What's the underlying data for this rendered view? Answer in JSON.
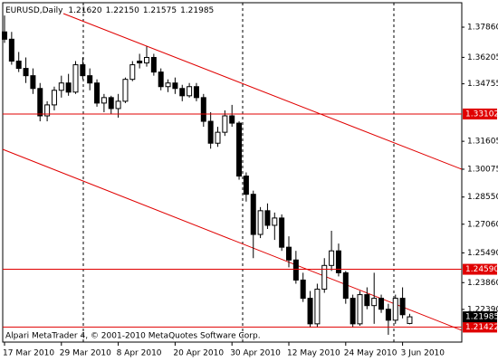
{
  "chart_data": {
    "type": "candlestick",
    "title": "EURUSD,Daily",
    "header_ohlc": [
      {
        "value": 1.2162,
        "label": "1.21620"
      },
      {
        "value": 1.2215,
        "label": "1.22150"
      },
      {
        "value": 1.21575,
        "label": "1.21575"
      },
      {
        "value": 1.21985,
        "label": "1.21985"
      }
    ],
    "watermark": "Alpari MetaTrader 4, © 2001-2010 MetaQuotes Software Corp.",
    "categories": [
      "17 Mar 2010",
      null,
      null,
      null,
      null,
      null,
      null,
      null,
      "29 Mar 2010",
      null,
      null,
      null,
      null,
      null,
      null,
      null,
      "8 Apr 2010",
      null,
      null,
      null,
      null,
      null,
      null,
      null,
      "20 Apr 2010",
      null,
      null,
      null,
      null,
      null,
      null,
      null,
      "30 Apr 2010",
      null,
      null,
      null,
      null,
      null,
      null,
      null,
      "12 May 2010",
      null,
      null,
      null,
      null,
      null,
      null,
      null,
      "24 May 2010",
      null,
      null,
      null,
      null,
      null,
      null,
      null,
      "3 Jun 2010",
      null
    ],
    "open": [
      1.376,
      1.372,
      1.36,
      1.356,
      1.352,
      1.345,
      1.33,
      1.336,
      1.344,
      1.348,
      1.343,
      1.358,
      1.352,
      1.348,
      1.337,
      1.34,
      1.334,
      1.338,
      1.35,
      1.36,
      1.359,
      1.362,
      1.354,
      1.346,
      1.348,
      1.345,
      1.341,
      1.346,
      1.34,
      1.327,
      1.315,
      1.321,
      1.33,
      1.326,
      1.297,
      1.287,
      1.265,
      1.278,
      1.27,
      1.274,
      1.258,
      1.251,
      1.24,
      1.23,
      1.216,
      1.235,
      1.248,
      1.256,
      1.244,
      1.23,
      1.216,
      1.232,
      1.226,
      1.23,
      1.224,
      1.218,
      1.23,
      1.2162
    ],
    "high": [
      1.385,
      1.376,
      1.365,
      1.362,
      1.356,
      1.348,
      1.338,
      1.346,
      1.352,
      1.353,
      1.36,
      1.362,
      1.356,
      1.35,
      1.342,
      1.341,
      1.342,
      1.351,
      1.36,
      1.364,
      1.368,
      1.364,
      1.356,
      1.35,
      1.351,
      1.347,
      1.348,
      1.348,
      1.342,
      1.332,
      1.324,
      1.333,
      1.336,
      1.327,
      1.299,
      1.289,
      1.28,
      1.282,
      1.277,
      1.276,
      1.264,
      1.256,
      1.244,
      1.234,
      1.238,
      1.252,
      1.267,
      1.26,
      1.245,
      1.232,
      1.234,
      1.236,
      1.244,
      1.232,
      1.227,
      1.232,
      1.236,
      1.2215
    ],
    "low": [
      1.37,
      1.358,
      1.354,
      1.348,
      1.342,
      1.327,
      1.327,
      1.333,
      1.34,
      1.341,
      1.342,
      1.35,
      1.344,
      1.335,
      1.332,
      1.331,
      1.329,
      1.337,
      1.349,
      1.356,
      1.357,
      1.352,
      1.344,
      1.343,
      1.342,
      1.338,
      1.34,
      1.338,
      1.324,
      1.312,
      1.313,
      1.319,
      1.324,
      1.295,
      1.283,
      1.252,
      1.263,
      1.268,
      1.262,
      1.256,
      1.247,
      1.238,
      1.228,
      1.214,
      1.214,
      1.233,
      1.245,
      1.242,
      1.227,
      1.214,
      1.215,
      1.224,
      1.216,
      1.222,
      1.21,
      1.216,
      1.219,
      1.21575
    ],
    "close": [
      1.372,
      1.36,
      1.356,
      1.352,
      1.345,
      1.33,
      1.336,
      1.344,
      1.348,
      1.343,
      1.358,
      1.352,
      1.348,
      1.337,
      1.34,
      1.334,
      1.338,
      1.35,
      1.358,
      1.359,
      1.362,
      1.354,
      1.346,
      1.348,
      1.345,
      1.341,
      1.346,
      1.34,
      1.327,
      1.315,
      1.321,
      1.33,
      1.326,
      1.297,
      1.287,
      1.265,
      1.278,
      1.27,
      1.274,
      1.258,
      1.251,
      1.24,
      1.23,
      1.216,
      1.235,
      1.248,
      1.256,
      1.244,
      1.23,
      1.216,
      1.232,
      1.226,
      1.23,
      1.224,
      1.218,
      1.23,
      1.221,
      1.21985
    ],
    "ylim": [
      1.206,
      1.392
    ],
    "yticks": [
      {
        "value": 1.3786,
        "label": "1.37860"
      },
      {
        "value": 1.36205,
        "label": "1.36205"
      },
      {
        "value": 1.34755,
        "label": "1.34755"
      },
      {
        "value": 1.31605,
        "label": "1.31605"
      },
      {
        "value": 1.30075,
        "label": "1.30075"
      },
      {
        "value": 1.2855,
        "label": "1.28550"
      },
      {
        "value": 1.2706,
        "label": "1.27060"
      },
      {
        "value": 1.2549,
        "label": "1.25490"
      },
      {
        "value": 1.2386,
        "label": "1.23860"
      },
      {
        "value": 1.2239,
        "label": "1.22390"
      }
    ],
    "levels": [
      {
        "value": 1.33102,
        "label": "1.33102"
      },
      {
        "value": 1.2459,
        "label": "1.24590"
      },
      {
        "value": 1.21422,
        "label": "1.21422"
      }
    ],
    "level_color": "#e00000",
    "current_price": {
      "value": 1.21985,
      "label": "1.21985"
    }
  }
}
